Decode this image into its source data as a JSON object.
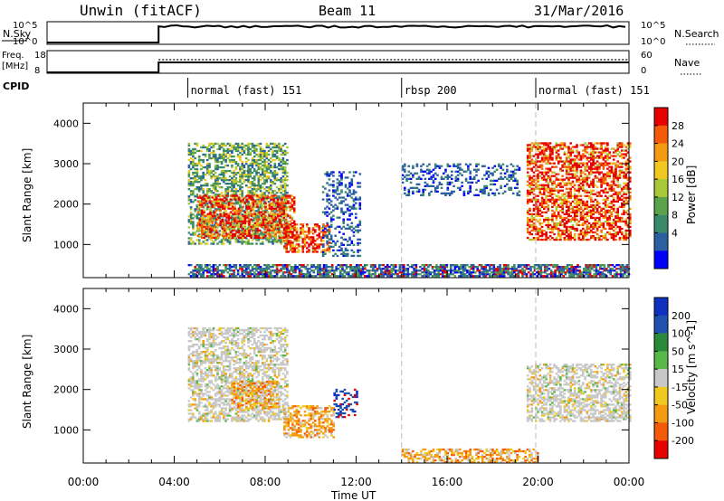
{
  "header": {
    "station": "Unwin (fitACF)",
    "beam": "Beam 11",
    "date": "31/Mar/2016"
  },
  "noise_panel": {
    "left_label": "N.Sky",
    "left_ticks": [
      "10^5",
      "10^0"
    ],
    "right_ticks": [
      "10^5",
      "10^0"
    ],
    "right_label": "N.Search"
  },
  "freq_panel": {
    "left_label_1": "Freq.",
    "left_label_2": "[MHz]",
    "left_ticks": [
      "18",
      "8"
    ],
    "right_ticks": [
      "60",
      "0"
    ],
    "right_label": "Nave"
  },
  "cpid": {
    "label": "CPID",
    "segments": [
      {
        "name": "normal (fast) 151",
        "start_hour": 4.6
      },
      {
        "name": "rbsp 200",
        "start_hour": 14.0
      },
      {
        "name": "normal (fast) 151",
        "start_hour": 19.9
      }
    ]
  },
  "axes": {
    "x_ticks": [
      "00:00",
      "04:00",
      "08:00",
      "12:00",
      "16:00",
      "20:00",
      "00:00"
    ],
    "x_label": "Time UT",
    "y_label": "Slant Range [km]",
    "y_ticks": [
      "4000",
      "3000",
      "2000",
      "1000"
    ]
  },
  "chart_data": [
    {
      "type": "heatmap",
      "quantity": "Power",
      "colorbar_label": "Power [dB]",
      "colorbar_ticks": [
        "28",
        "24",
        "20",
        "16",
        "12",
        "8",
        "4"
      ],
      "xlim_hours": [
        0,
        24
      ],
      "ylim_km": [
        180,
        4500
      ],
      "colors": [
        "#0000ff",
        "#2a5fa0",
        "#3a8a6a",
        "#5aa34a",
        "#a8c838",
        "#f0c820",
        "#f49a10",
        "#f45a0a",
        "#e60000"
      ],
      "regions": [
        {
          "t0": 4.6,
          "t1": 9.0,
          "r0": 1000,
          "r1": 3500,
          "level": "mixed-green"
        },
        {
          "t0": 5.0,
          "t1": 9.3,
          "r0": 1150,
          "r1": 2200,
          "level": "strong-red"
        },
        {
          "t0": 8.8,
          "t1": 10.8,
          "r0": 800,
          "r1": 1500,
          "level": "strong-red"
        },
        {
          "t0": 10.5,
          "t1": 12.2,
          "r0": 700,
          "r1": 2800,
          "level": "weak-blue"
        },
        {
          "t0": 14.0,
          "t1": 19.2,
          "r0": 2200,
          "r1": 3000,
          "level": "weak-blue"
        },
        {
          "t0": 19.5,
          "t1": 24.0,
          "r0": 1100,
          "r1": 3500,
          "level": "strong-red"
        },
        {
          "t0": 4.6,
          "t1": 24.0,
          "r0": 200,
          "r1": 500,
          "level": "near-range"
        }
      ]
    },
    {
      "type": "heatmap",
      "quantity": "Velocity",
      "colorbar_label": "Velocity [m s^-1]",
      "colorbar_ticks": [
        "200",
        "100",
        "50",
        "15",
        "-15",
        "-50",
        "-100",
        "-200"
      ],
      "xlim_hours": [
        0,
        24
      ],
      "ylim_km": [
        180,
        4500
      ],
      "colors": [
        "#e60000",
        "#f45a0a",
        "#f49a10",
        "#f0c820",
        "#c8c8c8",
        "#58b848",
        "#2a8a3a",
        "#2050b0",
        "#1030c0"
      ],
      "regions": [
        {
          "t0": 4.6,
          "t1": 9.0,
          "r0": 1200,
          "r1": 3500,
          "level": "ground-grey"
        },
        {
          "t0": 6.5,
          "t1": 8.5,
          "r0": 1500,
          "r1": 2200,
          "level": "away-orange"
        },
        {
          "t0": 8.8,
          "t1": 11.0,
          "r0": 800,
          "r1": 1600,
          "level": "away-orange"
        },
        {
          "t0": 11.0,
          "t1": 12.0,
          "r0": 1300,
          "r1": 2000,
          "level": "toward-blue"
        },
        {
          "t0": 19.5,
          "t1": 24.0,
          "r0": 1200,
          "r1": 2600,
          "level": "ground-grey"
        },
        {
          "t0": 14.0,
          "t1": 20.0,
          "r0": 180,
          "r1": 500,
          "level": "away-orange"
        }
      ]
    }
  ]
}
